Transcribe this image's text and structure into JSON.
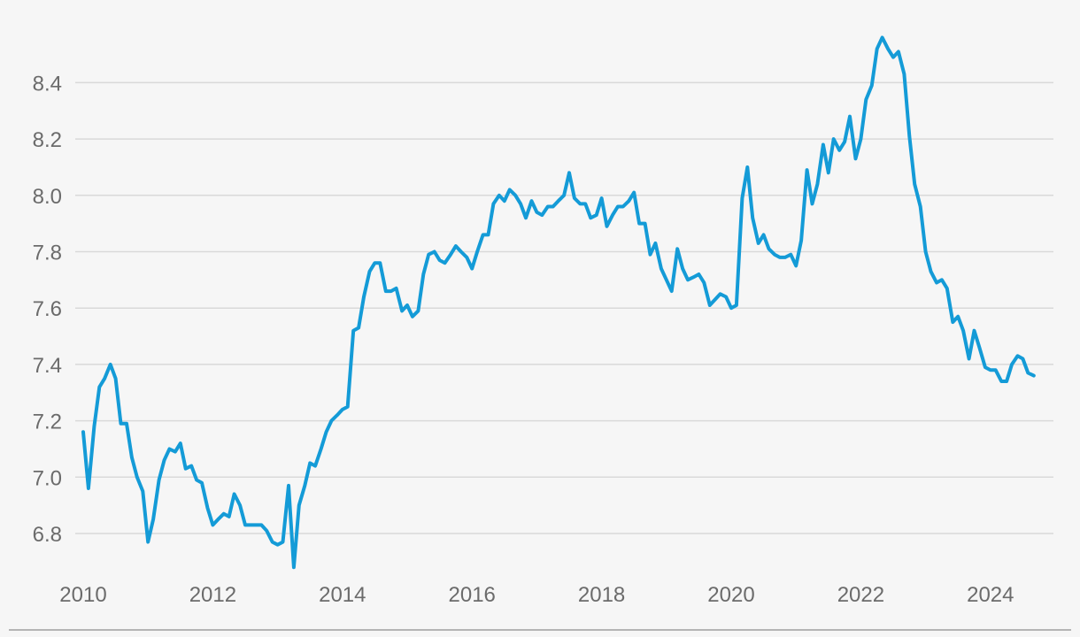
{
  "chart_data": {
    "type": "line",
    "title": "",
    "xlabel": "",
    "ylabel": "",
    "xlim": [
      2009.6,
      2025.1
    ],
    "ylim": [
      6.68,
      8.58
    ],
    "grid": true,
    "y_ticks": [
      {
        "value": 6.8,
        "label": "6.8"
      },
      {
        "value": 7.0,
        "label": "7.0"
      },
      {
        "value": 7.2,
        "label": "7.2"
      },
      {
        "value": 7.4,
        "label": "7.4"
      },
      {
        "value": 7.6,
        "label": "7.6"
      },
      {
        "value": 7.8,
        "label": "7.8"
      },
      {
        "value": 8.0,
        "label": "8.0"
      },
      {
        "value": 8.2,
        "label": "8.2"
      },
      {
        "value": 8.4,
        "label": "8.4"
      }
    ],
    "x_ticks": [
      {
        "value": 2010,
        "label": "2010"
      },
      {
        "value": 2012,
        "label": "2012"
      },
      {
        "value": 2014,
        "label": "2014"
      },
      {
        "value": 2016,
        "label": "2016"
      },
      {
        "value": 2018,
        "label": "2018"
      },
      {
        "value": 2020,
        "label": "2020"
      },
      {
        "value": 2022,
        "label": "2022"
      },
      {
        "value": 2024,
        "label": "2024"
      }
    ],
    "series": [
      {
        "color": "#149bd7",
        "points": [
          [
            2010.0,
            7.16
          ],
          [
            2010.08,
            6.96
          ],
          [
            2010.17,
            7.18
          ],
          [
            2010.25,
            7.32
          ],
          [
            2010.33,
            7.35
          ],
          [
            2010.42,
            7.4
          ],
          [
            2010.5,
            7.35
          ],
          [
            2010.58,
            7.19
          ],
          [
            2010.67,
            7.19
          ],
          [
            2010.75,
            7.07
          ],
          [
            2010.83,
            7.0
          ],
          [
            2010.92,
            6.95
          ],
          [
            2011.0,
            6.77
          ],
          [
            2011.08,
            6.85
          ],
          [
            2011.17,
            6.99
          ],
          [
            2011.25,
            7.06
          ],
          [
            2011.33,
            7.1
          ],
          [
            2011.42,
            7.09
          ],
          [
            2011.5,
            7.12
          ],
          [
            2011.58,
            7.03
          ],
          [
            2011.67,
            7.04
          ],
          [
            2011.75,
            6.99
          ],
          [
            2011.83,
            6.98
          ],
          [
            2011.92,
            6.89
          ],
          [
            2012.0,
            6.83
          ],
          [
            2012.08,
            6.85
          ],
          [
            2012.17,
            6.87
          ],
          [
            2012.25,
            6.86
          ],
          [
            2012.33,
            6.94
          ],
          [
            2012.42,
            6.9
          ],
          [
            2012.5,
            6.83
          ],
          [
            2012.58,
            6.83
          ],
          [
            2012.67,
            6.83
          ],
          [
            2012.75,
            6.83
          ],
          [
            2012.83,
            6.81
          ],
          [
            2012.92,
            6.77
          ],
          [
            2013.0,
            6.76
          ],
          [
            2013.08,
            6.77
          ],
          [
            2013.17,
            6.97
          ],
          [
            2013.25,
            6.68
          ],
          [
            2013.33,
            6.9
          ],
          [
            2013.42,
            6.97
          ],
          [
            2013.5,
            7.05
          ],
          [
            2013.58,
            7.04
          ],
          [
            2013.67,
            7.1
          ],
          [
            2013.75,
            7.16
          ],
          [
            2013.83,
            7.2
          ],
          [
            2013.92,
            7.22
          ],
          [
            2014.0,
            7.24
          ],
          [
            2014.08,
            7.25
          ],
          [
            2014.17,
            7.52
          ],
          [
            2014.25,
            7.53
          ],
          [
            2014.33,
            7.64
          ],
          [
            2014.42,
            7.73
          ],
          [
            2014.5,
            7.76
          ],
          [
            2014.58,
            7.76
          ],
          [
            2014.67,
            7.66
          ],
          [
            2014.75,
            7.66
          ],
          [
            2014.83,
            7.67
          ],
          [
            2014.92,
            7.59
          ],
          [
            2015.0,
            7.61
          ],
          [
            2015.08,
            7.57
          ],
          [
            2015.17,
            7.59
          ],
          [
            2015.25,
            7.72
          ],
          [
            2015.33,
            7.79
          ],
          [
            2015.42,
            7.8
          ],
          [
            2015.5,
            7.77
          ],
          [
            2015.58,
            7.76
          ],
          [
            2015.67,
            7.79
          ],
          [
            2015.75,
            7.82
          ],
          [
            2015.83,
            7.8
          ],
          [
            2015.92,
            7.78
          ],
          [
            2016.0,
            7.74
          ],
          [
            2016.08,
            7.8
          ],
          [
            2016.17,
            7.86
          ],
          [
            2016.25,
            7.86
          ],
          [
            2016.33,
            7.97
          ],
          [
            2016.42,
            8.0
          ],
          [
            2016.5,
            7.98
          ],
          [
            2016.58,
            8.02
          ],
          [
            2016.67,
            8.0
          ],
          [
            2016.75,
            7.97
          ],
          [
            2016.83,
            7.92
          ],
          [
            2016.92,
            7.98
          ],
          [
            2017.0,
            7.94
          ],
          [
            2017.08,
            7.93
          ],
          [
            2017.17,
            7.96
          ],
          [
            2017.25,
            7.96
          ],
          [
            2017.33,
            7.98
          ],
          [
            2017.42,
            8.0
          ],
          [
            2017.5,
            8.08
          ],
          [
            2017.58,
            7.99
          ],
          [
            2017.67,
            7.97
          ],
          [
            2017.75,
            7.97
          ],
          [
            2017.83,
            7.92
          ],
          [
            2017.92,
            7.93
          ],
          [
            2018.0,
            7.99
          ],
          [
            2018.08,
            7.89
          ],
          [
            2018.17,
            7.93
          ],
          [
            2018.25,
            7.96
          ],
          [
            2018.33,
            7.96
          ],
          [
            2018.42,
            7.98
          ],
          [
            2018.5,
            8.01
          ],
          [
            2018.58,
            7.9
          ],
          [
            2018.67,
            7.9
          ],
          [
            2018.75,
            7.79
          ],
          [
            2018.83,
            7.83
          ],
          [
            2018.92,
            7.74
          ],
          [
            2019.0,
            7.7
          ],
          [
            2019.08,
            7.66
          ],
          [
            2019.17,
            7.81
          ],
          [
            2019.25,
            7.74
          ],
          [
            2019.33,
            7.7
          ],
          [
            2019.42,
            7.71
          ],
          [
            2019.5,
            7.72
          ],
          [
            2019.58,
            7.69
          ],
          [
            2019.67,
            7.61
          ],
          [
            2019.75,
            7.63
          ],
          [
            2019.83,
            7.65
          ],
          [
            2019.92,
            7.64
          ],
          [
            2020.0,
            7.6
          ],
          [
            2020.08,
            7.61
          ],
          [
            2020.17,
            7.99
          ],
          [
            2020.25,
            8.1
          ],
          [
            2020.33,
            7.92
          ],
          [
            2020.42,
            7.83
          ],
          [
            2020.5,
            7.86
          ],
          [
            2020.58,
            7.81
          ],
          [
            2020.67,
            7.79
          ],
          [
            2020.75,
            7.78
          ],
          [
            2020.83,
            7.78
          ],
          [
            2020.92,
            7.79
          ],
          [
            2021.0,
            7.75
          ],
          [
            2021.08,
            7.84
          ],
          [
            2021.17,
            8.09
          ],
          [
            2021.25,
            7.97
          ],
          [
            2021.33,
            8.04
          ],
          [
            2021.42,
            8.18
          ],
          [
            2021.5,
            8.08
          ],
          [
            2021.58,
            8.2
          ],
          [
            2021.67,
            8.16
          ],
          [
            2021.75,
            8.19
          ],
          [
            2021.83,
            8.28
          ],
          [
            2021.92,
            8.13
          ],
          [
            2022.0,
            8.2
          ],
          [
            2022.08,
            8.34
          ],
          [
            2022.17,
            8.39
          ],
          [
            2022.25,
            8.52
          ],
          [
            2022.33,
            8.56
          ],
          [
            2022.42,
            8.52
          ],
          [
            2022.5,
            8.49
          ],
          [
            2022.58,
            8.51
          ],
          [
            2022.67,
            8.43
          ],
          [
            2022.75,
            8.21
          ],
          [
            2022.83,
            8.04
          ],
          [
            2022.92,
            7.96
          ],
          [
            2023.0,
            7.8
          ],
          [
            2023.08,
            7.73
          ],
          [
            2023.17,
            7.69
          ],
          [
            2023.25,
            7.7
          ],
          [
            2023.33,
            7.67
          ],
          [
            2023.42,
            7.55
          ],
          [
            2023.5,
            7.57
          ],
          [
            2023.58,
            7.52
          ],
          [
            2023.67,
            7.42
          ],
          [
            2023.75,
            7.52
          ],
          [
            2023.83,
            7.46
          ],
          [
            2023.92,
            7.39
          ],
          [
            2024.0,
            7.38
          ],
          [
            2024.08,
            7.38
          ],
          [
            2024.17,
            7.34
          ],
          [
            2024.25,
            7.34
          ],
          [
            2024.33,
            7.4
          ],
          [
            2024.42,
            7.43
          ],
          [
            2024.5,
            7.42
          ],
          [
            2024.58,
            7.37
          ],
          [
            2024.67,
            7.36
          ]
        ]
      }
    ]
  }
}
